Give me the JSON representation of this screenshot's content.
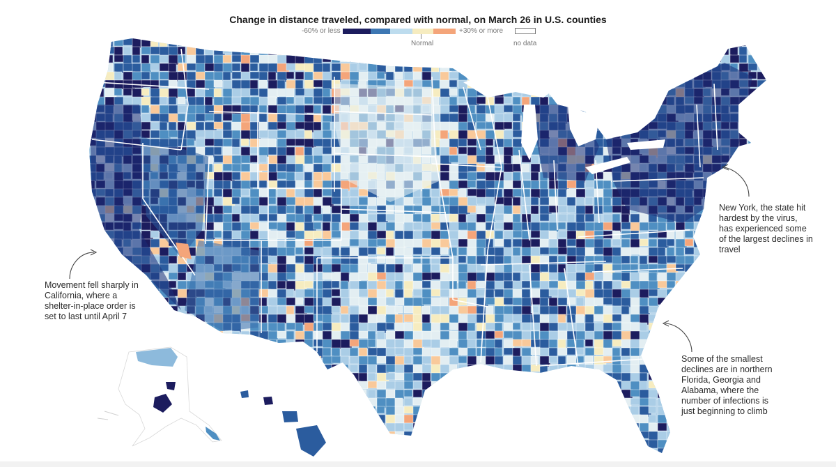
{
  "title": "Change in distance traveled, compared with normal, on March 26 in U.S. counties",
  "legend": {
    "low_label": "-60% or less",
    "high_label": "+30% or more",
    "normal_label": "Normal",
    "nodata_label": "no data",
    "colors": [
      "#1c1c5e",
      "#2b5c9e",
      "#4f8fc2",
      "#aacde6",
      "#e3eef2",
      "#f6ecc0",
      "#f9c99a",
      "#f4a57a"
    ]
  },
  "annotations": {
    "california": "Movement fell sharply in California, where a shelter-in-place order is set to last until April 7",
    "new_york": "New York, the state hit hardest by the virus, has experienced some of the largest declines in travel",
    "south": "Some of the smallest declines are in northern Florida, Georgia and Alabama, where the number of infections is just beginning to climb"
  }
}
